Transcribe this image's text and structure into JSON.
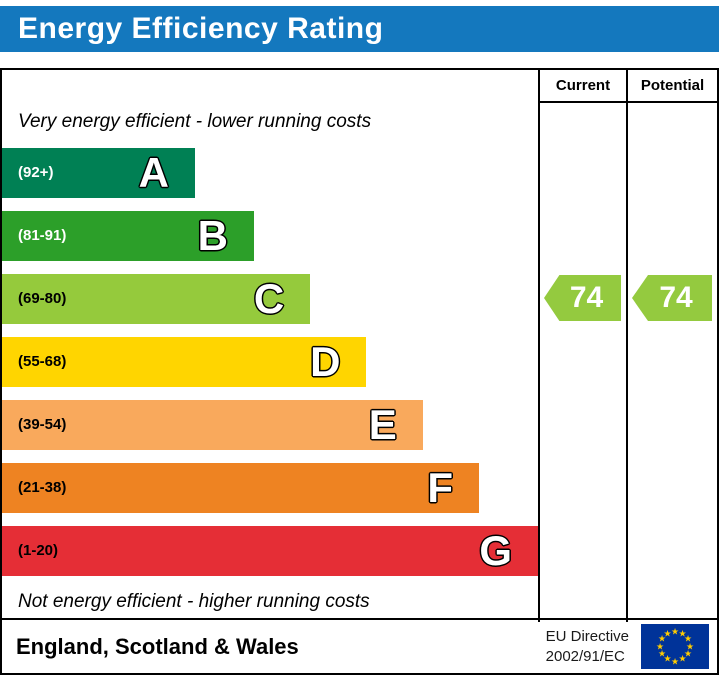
{
  "title": "Energy Efficiency Rating",
  "colors": {
    "title_bar_bg": "#1478be",
    "eu_flag_bg": "#003399",
    "arrow_green": "#94ca3f"
  },
  "columns": {
    "current": "Current",
    "potential": "Potential"
  },
  "notes": {
    "top": "Very energy efficient - lower running costs",
    "bottom": "Not energy efficient - higher running costs"
  },
  "bands": [
    {
      "letter": "A",
      "range": "(92+)",
      "color": "#008054",
      "text_color": "#ffffff",
      "width_pct": 36
    },
    {
      "letter": "B",
      "range": "(81-91)",
      "color": "#2c9f29",
      "text_color": "#ffffff",
      "width_pct": 47
    },
    {
      "letter": "C",
      "range": "(69-80)",
      "color": "#95ca3c",
      "text_color": "#000000",
      "width_pct": 57.5
    },
    {
      "letter": "D",
      "range": "(55-68)",
      "color": "#ffd500",
      "text_color": "#000000",
      "width_pct": 68
    },
    {
      "letter": "E",
      "range": "(39-54)",
      "color": "#f9a95c",
      "text_color": "#000000",
      "width_pct": 78.5
    },
    {
      "letter": "F",
      "range": "(21-38)",
      "color": "#ee8322",
      "text_color": "#000000",
      "width_pct": 89
    },
    {
      "letter": "G",
      "range": "(1-20)",
      "color": "#e52e36",
      "text_color": "#000000",
      "width_pct": 100
    }
  ],
  "ratings": {
    "current": {
      "value": "74",
      "color": "#94ca3f"
    },
    "potential": {
      "value": "74",
      "color": "#94ca3f"
    }
  },
  "footer": {
    "region": "England, Scotland & Wales",
    "directive_line1": "EU Directive",
    "directive_line2": "2002/91/EC"
  },
  "chart_data": {
    "type": "bar",
    "orientation": "horizontal",
    "title": "Energy Efficiency Rating",
    "categories": [
      "A",
      "B",
      "C",
      "D",
      "E",
      "F",
      "G"
    ],
    "band_ranges": [
      "92+",
      "81-91",
      "69-80",
      "55-68",
      "39-54",
      "21-38",
      "1-20"
    ],
    "band_colors": [
      "#008054",
      "#2c9f29",
      "#95ca3c",
      "#ffd500",
      "#f9a95c",
      "#ee8322",
      "#e52e36"
    ],
    "bar_relative_widths_pct": [
      36,
      47,
      57.5,
      68,
      78.5,
      89,
      100
    ],
    "series": [
      {
        "name": "Current",
        "value": 74,
        "band": "C"
      },
      {
        "name": "Potential",
        "value": 74,
        "band": "C"
      }
    ],
    "annotations": [
      "Very energy efficient - lower running costs",
      "Not energy efficient - higher running costs"
    ],
    "footnote": "England, Scotland & Wales | EU Directive 2002/91/EC"
  }
}
